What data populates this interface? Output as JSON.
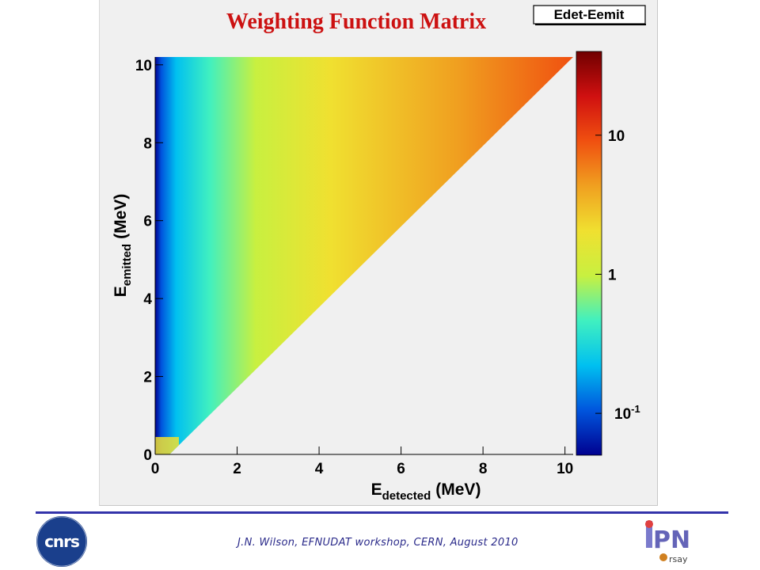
{
  "chart_data": {
    "type": "heatmap",
    "title": "Weighting Function Matrix",
    "histogram_name": "Edet-Eemit",
    "xlabel": {
      "main": "E",
      "sub": "detected",
      "unit": "(MeV)"
    },
    "ylabel": {
      "main": "E",
      "sub": "emitted",
      "unit": "(MeV)"
    },
    "xlim": [
      0,
      10.2
    ],
    "ylim": [
      0,
      10.2
    ],
    "x_ticks": [
      "0",
      "2",
      "4",
      "6",
      "8",
      "10"
    ],
    "y_ticks": [
      "0",
      "2",
      "4",
      "6",
      "8",
      "10"
    ],
    "filled_region": "E_detected <= E_emitted",
    "z_scale": "log",
    "zlim": [
      0.05,
      40
    ],
    "z_ticks": [
      {
        "value": 0.1,
        "base": "10",
        "exp": "-1"
      },
      {
        "value": 1,
        "label": "1"
      },
      {
        "value": 10,
        "label": "10"
      }
    ],
    "colormap": [
      "#00008f",
      "#0055dd",
      "#00c0f0",
      "#40f0c0",
      "#c8f040",
      "#f0e030",
      "#f0a020",
      "#f05010",
      "#d01010",
      "#700000"
    ],
    "empty_color": "#f0f0f0"
  },
  "footer": {
    "text": "J.N. Wilson,  EFNUDAT workshop, CERN, August 2010",
    "line_color": "#3333aa"
  },
  "logos": {
    "left": "cnrs",
    "right_top": "IPN",
    "right_bottom": "orsay"
  }
}
